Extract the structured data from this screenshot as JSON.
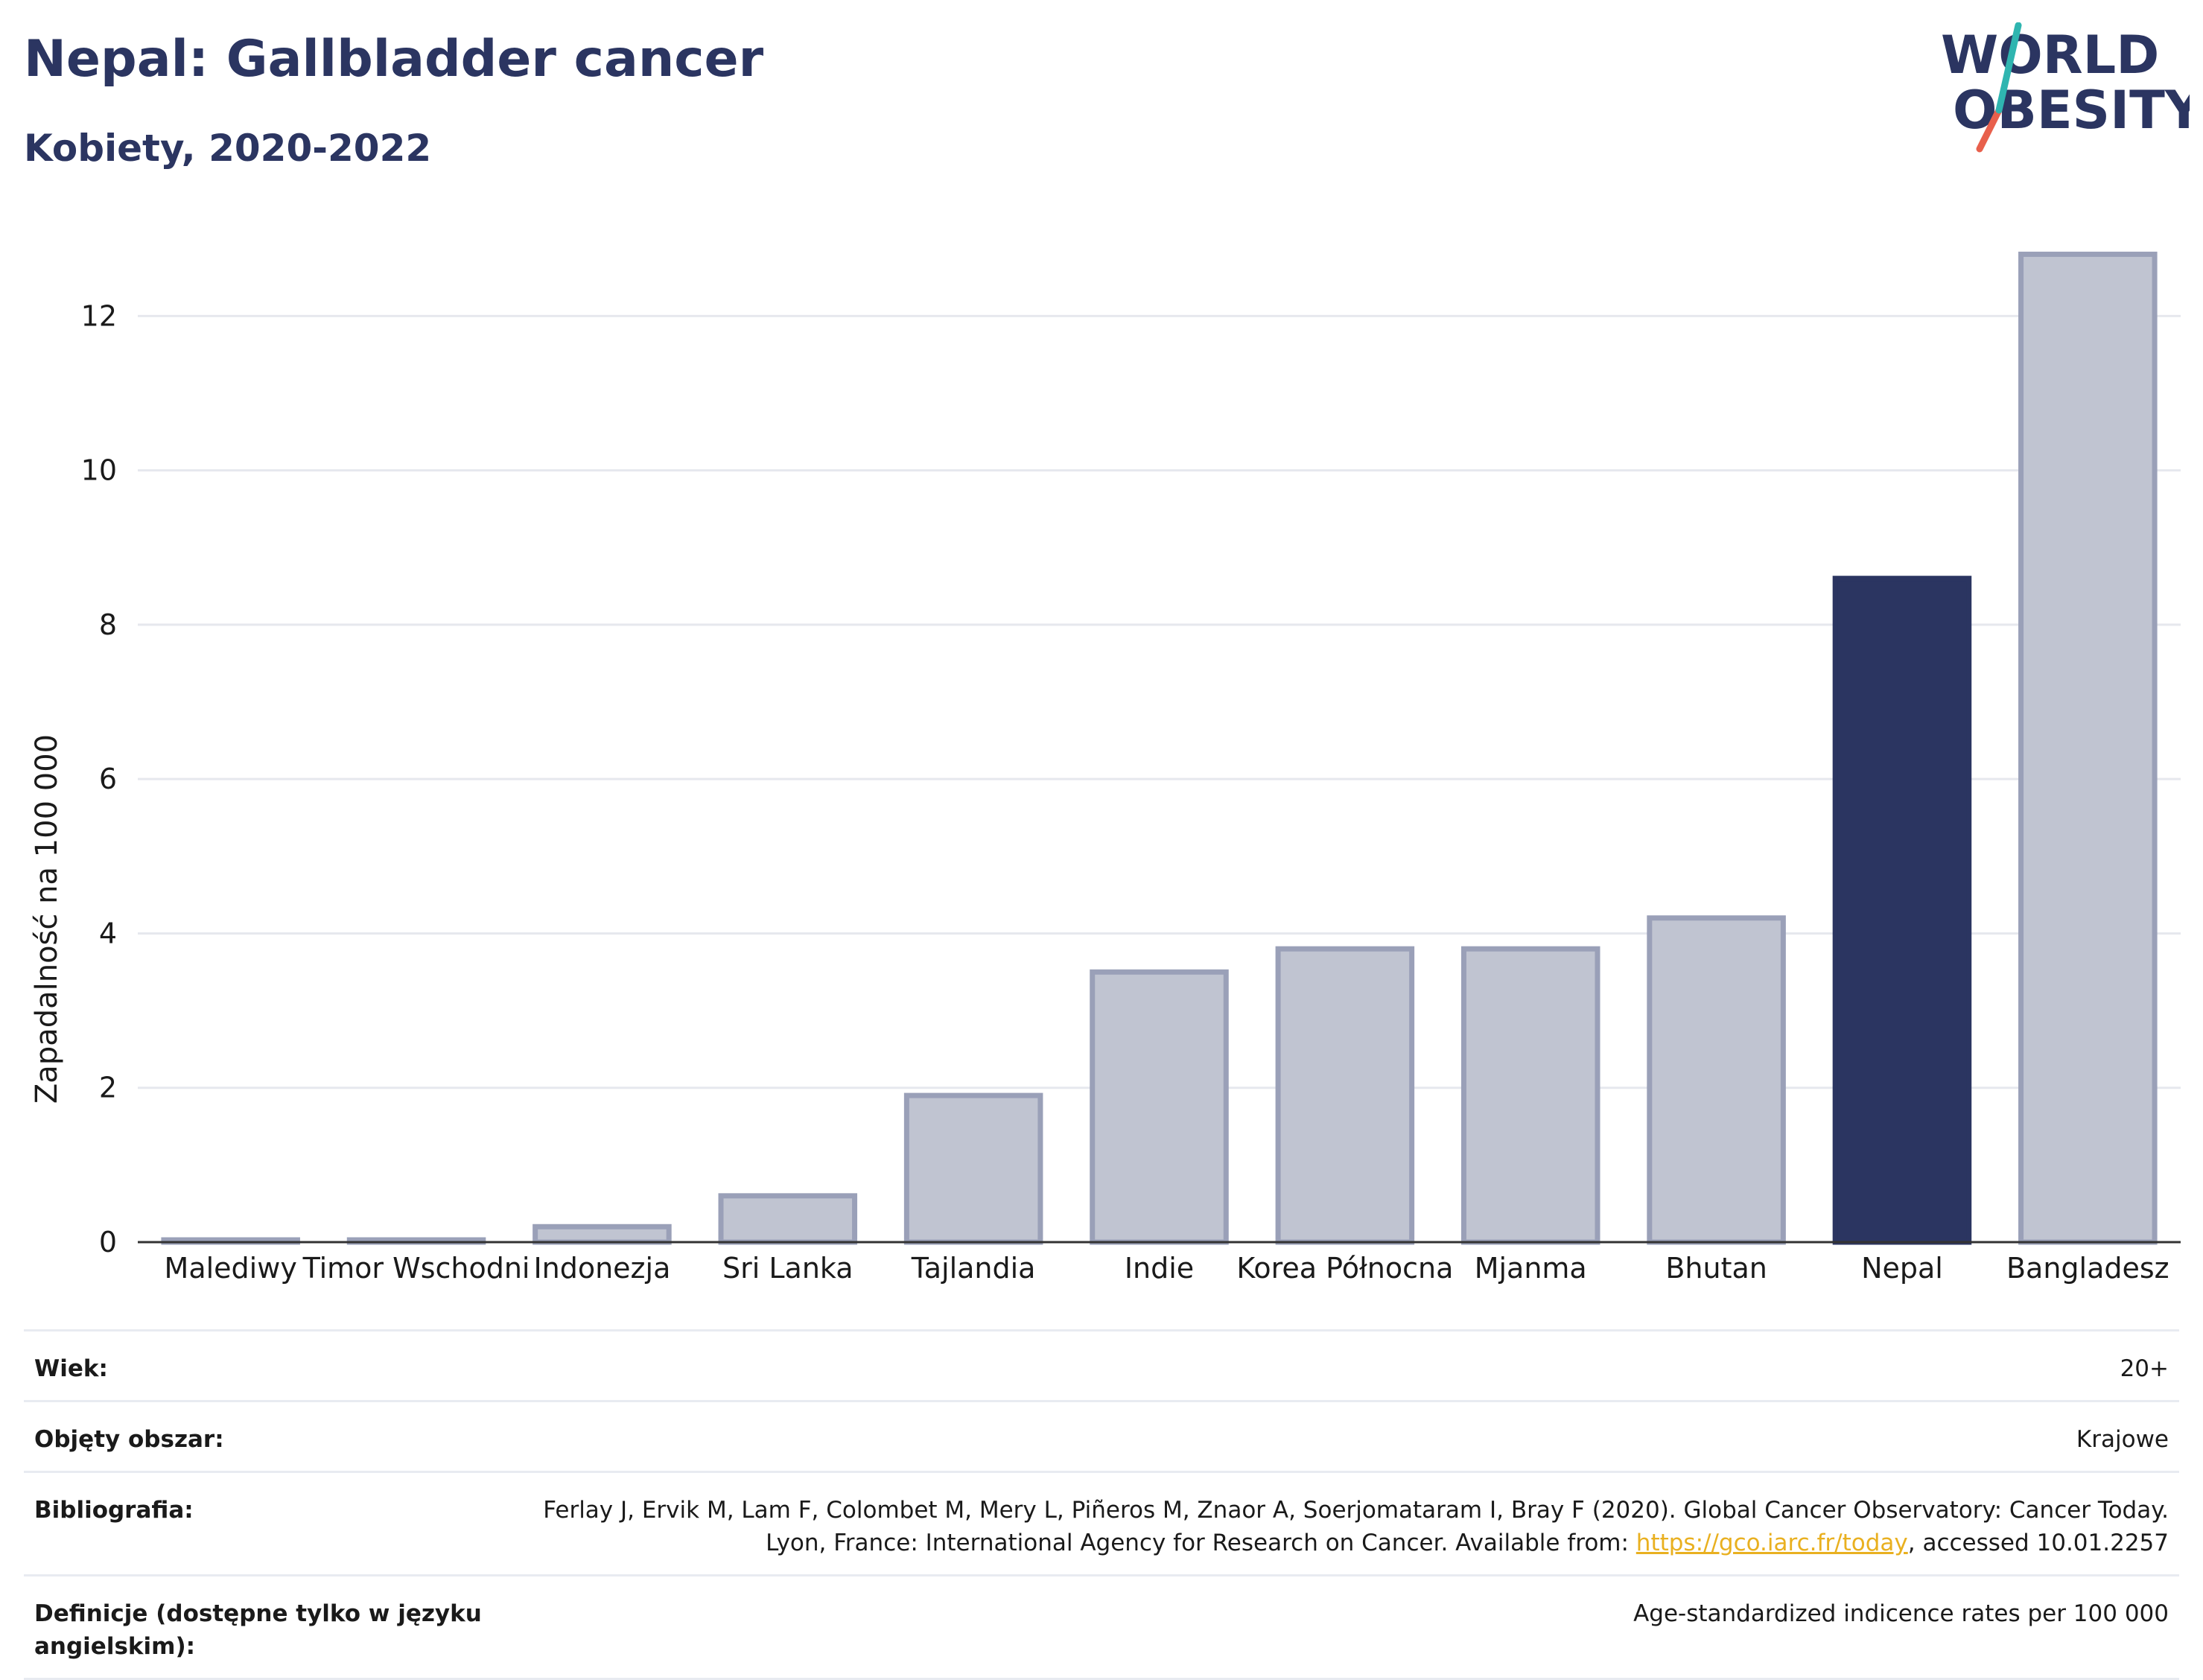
{
  "header": {
    "title": "Nepal: Gallbladder cancer",
    "subtitle": "Kobiety, 2020-2022",
    "logo_line1": "WORLD",
    "logo_line2": "OBESITY"
  },
  "colors": {
    "highlight": "#2b3561",
    "bar_fill": "#c0c4d1",
    "bar_stroke": "#9aa0b8",
    "grid": "#e6e8ee",
    "link": "#e9b020"
  },
  "chart_data": {
    "type": "bar",
    "title": "Nepal: Gallbladder cancer",
    "subtitle": "Kobiety, 2020-2022",
    "xlabel": "",
    "ylabel": "Zapadalność na 100 000",
    "categories": [
      "Malediwy",
      "Timor Wschodni",
      "Indonezja",
      "Sri Lanka",
      "Tajlandia",
      "Indie",
      "Korea Północna",
      "Mjanma",
      "Bhutan",
      "Nepal",
      "Bangladesz"
    ],
    "values": [
      0.0,
      0.0,
      0.2,
      0.6,
      1.9,
      3.5,
      3.8,
      3.8,
      4.2,
      8.6,
      12.8
    ],
    "highlight": "Nepal",
    "ylim": [
      0,
      13.2
    ],
    "yticks": [
      0,
      2,
      4,
      6,
      8,
      10,
      12
    ],
    "grid": true
  },
  "meta": {
    "age_label": "Wiek:",
    "age_value": "20+",
    "area_label": "Objęty obszar:",
    "area_value": "Krajowe",
    "biblio_label": "Bibliografia:",
    "biblio_text_1": "Ferlay J, Ervik M, Lam F, Colombet M, Mery L, Piñeros M, Znaor A, Soerjomataram I, Bray F (2020). Global Cancer Observatory: Cancer Today. Lyon, France: International Agency for Research on Cancer. Available from: ",
    "biblio_link": "https://gco.iarc.fr/today",
    "biblio_text_2": ", accessed 10.01.2257",
    "def_label": "Definicje (dostępne tylko w języku angielskim):",
    "def_value": "Age-standardized indicence rates per 100 000"
  }
}
